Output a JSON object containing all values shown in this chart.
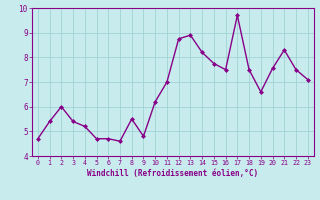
{
  "x": [
    0,
    1,
    2,
    3,
    4,
    5,
    6,
    7,
    8,
    9,
    10,
    11,
    12,
    13,
    14,
    15,
    16,
    17,
    18,
    19,
    20,
    21,
    22,
    23
  ],
  "y": [
    4.7,
    5.4,
    6.0,
    5.4,
    5.2,
    4.7,
    4.7,
    4.6,
    5.5,
    4.8,
    6.2,
    7.0,
    8.75,
    8.9,
    8.2,
    7.75,
    7.5,
    9.7,
    7.5,
    6.6,
    7.55,
    8.3,
    7.5,
    7.1
  ],
  "line_color": "#880088",
  "marker": "D",
  "marker_size": 2,
  "bg_color": "#c8eced",
  "grid_color": "#a0d4d4",
  "xlabel": "Windchill (Refroidissement éolien,°C)",
  "xlabel_color": "#880088",
  "tick_color": "#880088",
  "ylim": [
    4,
    10
  ],
  "xlim": [
    -0.5,
    23.5
  ],
  "yticks": [
    4,
    5,
    6,
    7,
    8,
    9,
    10
  ],
  "xticks": [
    0,
    1,
    2,
    3,
    4,
    5,
    6,
    7,
    8,
    9,
    10,
    11,
    12,
    13,
    14,
    15,
    16,
    17,
    18,
    19,
    20,
    21,
    22,
    23
  ],
  "spine_color": "#880088",
  "axis_bg_color": "#c8eced"
}
